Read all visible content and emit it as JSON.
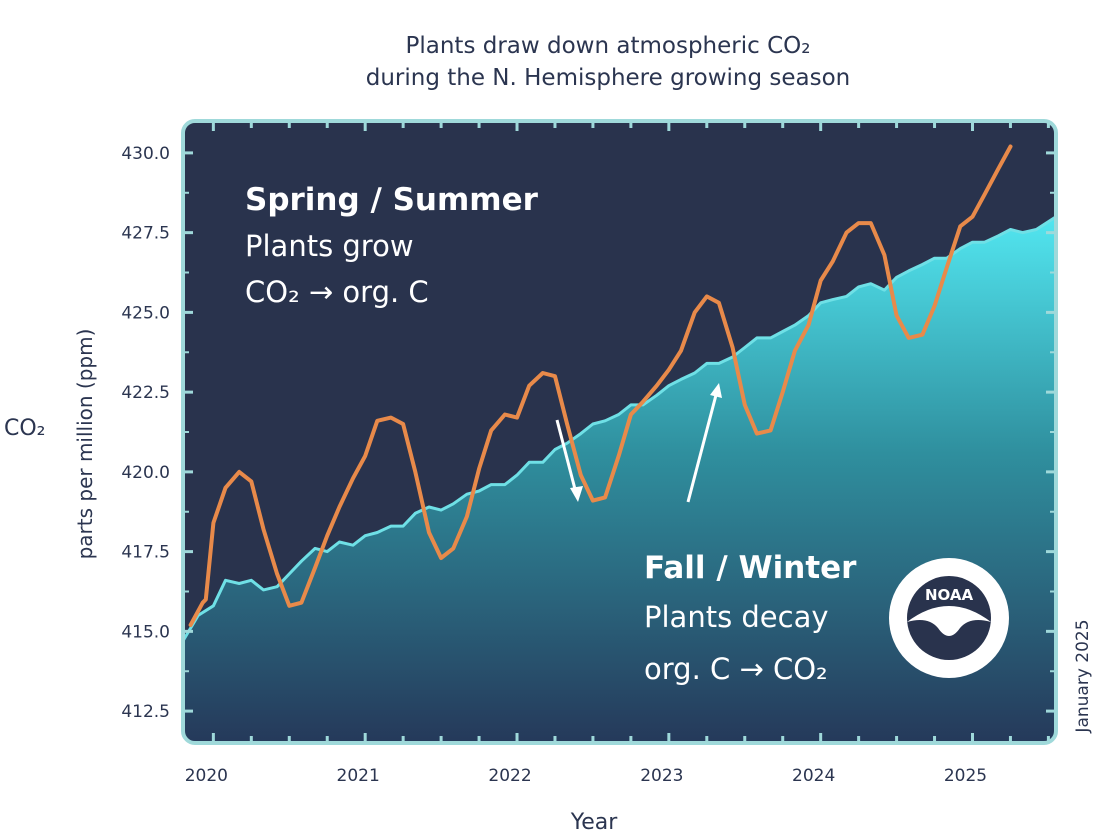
{
  "chart_data": {
    "type": "line",
    "title": "Plants draw down atmospheric CO₂",
    "subtitle": "during the N. Hemisphere growing season",
    "ylabel": "CO₂",
    "ylabel_unit": "parts per million (ppm)",
    "xlabel": "Year",
    "ylim": [
      411.5,
      431.0
    ],
    "xlim": [
      2019.8,
      2025.55
    ],
    "yticks": [
      "412.5",
      "415.0",
      "417.5",
      "420.0",
      "422.5",
      "425.0",
      "427.5",
      "430.0"
    ],
    "xticks": [
      "2020",
      "2021",
      "2022",
      "2023",
      "2024",
      "2025"
    ],
    "grid": false,
    "series": [
      {
        "color": "#e88a4a",
        "x": [
          2019.85,
          2019.93,
          2019.95,
          2020.0,
          2020.08,
          2020.17,
          2020.25,
          2020.33,
          2020.42,
          2020.5,
          2020.58,
          2020.67,
          2020.75,
          2020.83,
          2020.92,
          2021.0,
          2021.08,
          2021.17,
          2021.25,
          2021.33,
          2021.42,
          2021.5,
          2021.58,
          2021.67,
          2021.75,
          2021.83,
          2021.92,
          2022.0,
          2022.08,
          2022.17,
          2022.25,
          2022.33,
          2022.42,
          2022.5,
          2022.58,
          2022.67,
          2022.75,
          2022.83,
          2022.92,
          2023.0,
          2023.08,
          2023.17,
          2023.25,
          2023.33,
          2023.42,
          2023.5,
          2023.58,
          2023.67,
          2023.75,
          2023.83,
          2023.92,
          2024.0,
          2024.08,
          2024.17,
          2024.25,
          2024.33,
          2024.42,
          2024.5,
          2024.58,
          2024.67,
          2024.75,
          2024.83,
          2024.92,
          2025.0,
          2025.08,
          2025.17,
          2025.25,
          2025.33,
          2025.42
        ],
        "y": [
          415.2,
          415.9,
          416.0,
          418.4,
          419.5,
          420.0,
          419.7,
          418.2,
          416.8,
          415.8,
          415.9,
          417.0,
          418.0,
          418.9,
          419.8,
          420.5,
          421.6,
          421.7,
          421.5,
          420.0,
          418.1,
          417.3,
          417.6,
          418.6,
          420.1,
          421.3,
          421.8,
          421.7,
          422.7,
          423.1,
          423.0,
          421.5,
          419.9,
          419.1,
          419.2,
          420.5,
          421.8,
          422.2,
          422.7,
          423.2,
          423.8,
          425.0,
          425.5,
          425.3,
          423.9,
          422.1,
          421.2,
          421.3,
          422.5,
          423.8,
          424.6,
          426.0,
          426.6,
          427.5,
          427.8,
          427.8,
          426.8,
          424.9,
          424.2,
          424.3,
          425.2,
          426.4,
          427.7,
          428.0,
          428.7,
          429.5,
          430.2,
          null,
          null
        ]
      },
      {
        "color": "#6fe0e6",
        "x": [
          2019.8,
          2019.9,
          2020.0,
          2020.08,
          2020.17,
          2020.25,
          2020.33,
          2020.42,
          2020.5,
          2020.58,
          2020.67,
          2020.75,
          2020.83,
          2020.92,
          2021.0,
          2021.08,
          2021.17,
          2021.25,
          2021.33,
          2021.42,
          2021.5,
          2021.58,
          2021.67,
          2021.75,
          2021.83,
          2021.92,
          2022.0,
          2022.08,
          2022.17,
          2022.25,
          2022.33,
          2022.42,
          2022.5,
          2022.58,
          2022.67,
          2022.75,
          2022.83,
          2022.92,
          2023.0,
          2023.08,
          2023.17,
          2023.25,
          2023.33,
          2023.42,
          2023.5,
          2023.58,
          2023.67,
          2023.75,
          2023.83,
          2023.92,
          2024.0,
          2024.08,
          2024.17,
          2024.25,
          2024.33,
          2024.42,
          2024.5,
          2024.58,
          2024.67,
          2024.75,
          2024.83,
          2024.92,
          2025.0,
          2025.08,
          2025.17,
          2025.25,
          2025.33,
          2025.42,
          2025.55
        ],
        "y": [
          414.7,
          415.5,
          415.8,
          416.6,
          416.5,
          416.6,
          416.3,
          416.4,
          416.8,
          417.2,
          417.6,
          417.5,
          417.8,
          417.7,
          418.0,
          418.1,
          418.3,
          418.3,
          418.7,
          418.9,
          418.8,
          419.0,
          419.3,
          419.4,
          419.6,
          419.6,
          419.9,
          420.3,
          420.3,
          420.7,
          420.9,
          421.2,
          421.5,
          421.6,
          421.8,
          422.1,
          422.1,
          422.4,
          422.7,
          422.9,
          423.1,
          423.4,
          423.4,
          423.6,
          423.9,
          424.2,
          424.2,
          424.4,
          424.6,
          424.9,
          425.3,
          425.4,
          425.5,
          425.8,
          425.9,
          425.7,
          426.1,
          426.3,
          426.5,
          426.7,
          426.7,
          427.0,
          427.2,
          427.2,
          427.4,
          427.6,
          427.5,
          427.6,
          428.0
        ]
      }
    ],
    "annotations": [
      {
        "heading": "Spring / Summer",
        "lines": [
          "Plants grow",
          "CO₂  →  org. C"
        ]
      },
      {
        "heading": "Fall / Winter",
        "lines": [
          "Plants decay",
          "org. C  →  CO₂"
        ]
      }
    ],
    "logo_text": "NOAA",
    "date_note": "January 2025"
  },
  "colors": {
    "panel_background": "#29334d",
    "panel_border": "#9fd9da",
    "fill_top": "#52e6f0",
    "fill_bottom": "#25395a",
    "line_orange": "#e88a4a",
    "line_cyan": "#6fe0e6",
    "text": "#2b3550"
  }
}
